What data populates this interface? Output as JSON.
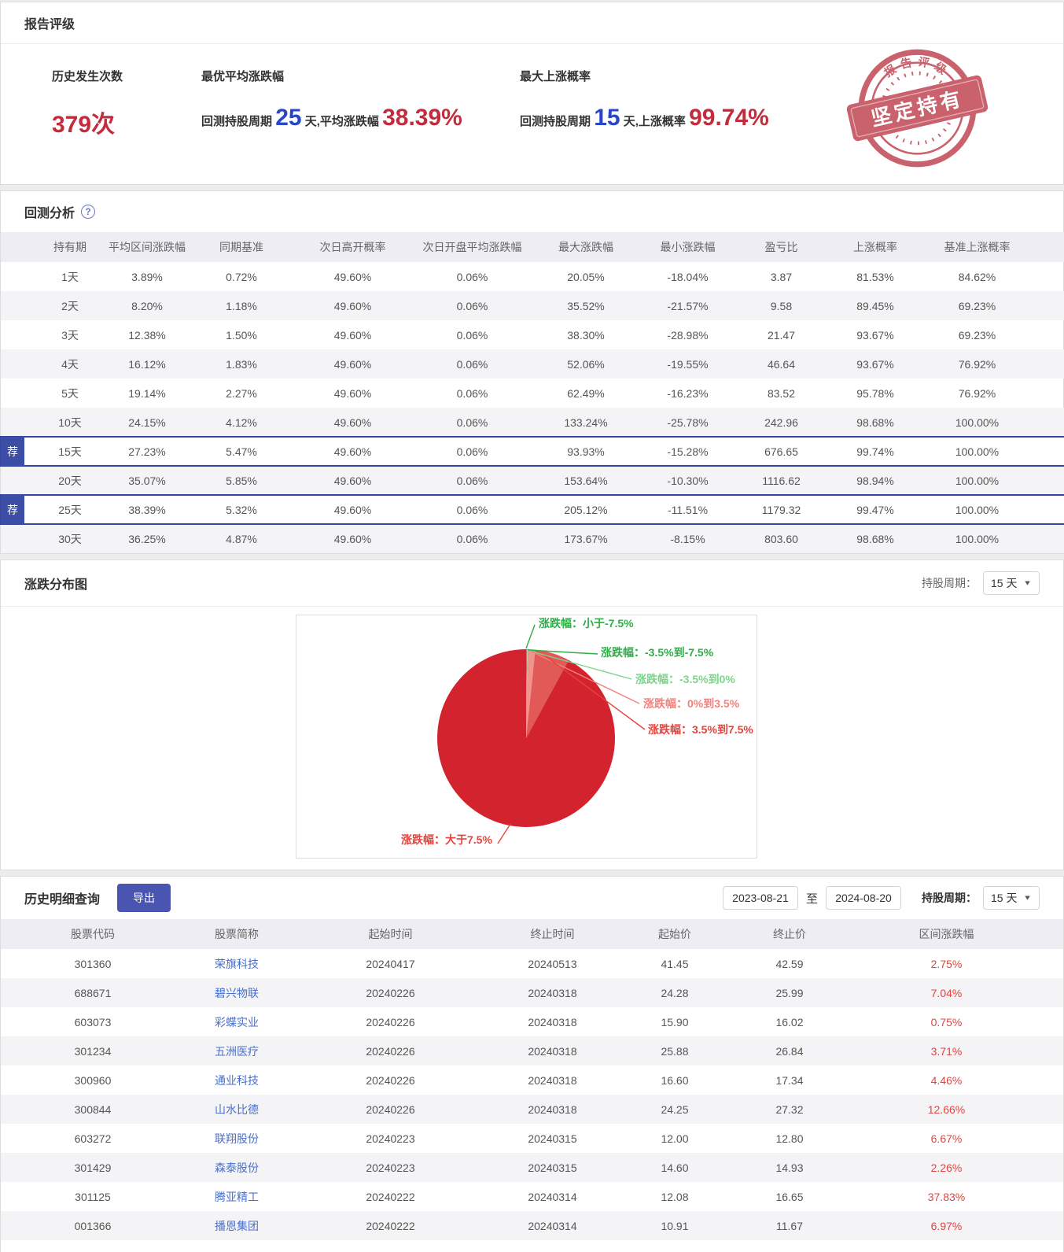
{
  "report_rating": {
    "title": "报告评级",
    "occurrences": {
      "label": "历史发生次数",
      "value": "379次"
    },
    "best_return": {
      "label": "最优平均涨跌幅",
      "prefix": "回测持股周期",
      "days": "25",
      "mid": "天,平均涨跌幅",
      "value": "38.39%"
    },
    "max_prob": {
      "label": "最大上涨概率",
      "prefix": "回测持股周期",
      "days": "15",
      "mid": "天,上涨概率",
      "value": "99.74%"
    },
    "stamp": {
      "ring_text": "报告评级",
      "banner_text": "坚定持有",
      "color": "#c24b57"
    }
  },
  "backtest": {
    "title": "回测分析",
    "help_icon": "?",
    "recommend_badge": "荐",
    "columns": [
      "持有期",
      "平均区间涨跌幅",
      "同期基准",
      "次日高开概率",
      "次日开盘平均涨跌幅",
      "最大涨跌幅",
      "最小涨跌幅",
      "盈亏比",
      "上涨概率",
      "基准上涨概率"
    ],
    "rows": [
      {
        "recommended": false,
        "cells": [
          "1天",
          "3.89%",
          "0.72%",
          "49.60%",
          "0.06%",
          "20.05%",
          "-18.04%",
          "3.87",
          "81.53%",
          "84.62%"
        ]
      },
      {
        "recommended": false,
        "cells": [
          "2天",
          "8.20%",
          "1.18%",
          "49.60%",
          "0.06%",
          "35.52%",
          "-21.57%",
          "9.58",
          "89.45%",
          "69.23%"
        ]
      },
      {
        "recommended": false,
        "cells": [
          "3天",
          "12.38%",
          "1.50%",
          "49.60%",
          "0.06%",
          "38.30%",
          "-28.98%",
          "21.47",
          "93.67%",
          "69.23%"
        ]
      },
      {
        "recommended": false,
        "cells": [
          "4天",
          "16.12%",
          "1.83%",
          "49.60%",
          "0.06%",
          "52.06%",
          "-19.55%",
          "46.64",
          "93.67%",
          "76.92%"
        ]
      },
      {
        "recommended": false,
        "cells": [
          "5天",
          "19.14%",
          "2.27%",
          "49.60%",
          "0.06%",
          "62.49%",
          "-16.23%",
          "83.52",
          "95.78%",
          "76.92%"
        ]
      },
      {
        "recommended": false,
        "cells": [
          "10天",
          "24.15%",
          "4.12%",
          "49.60%",
          "0.06%",
          "133.24%",
          "-25.78%",
          "242.96",
          "98.68%",
          "100.00%"
        ]
      },
      {
        "recommended": true,
        "cells": [
          "15天",
          "27.23%",
          "5.47%",
          "49.60%",
          "0.06%",
          "93.93%",
          "-15.28%",
          "676.65",
          "99.74%",
          "100.00%"
        ]
      },
      {
        "recommended": false,
        "cells": [
          "20天",
          "35.07%",
          "5.85%",
          "49.60%",
          "0.06%",
          "153.64%",
          "-10.30%",
          "1116.62",
          "98.94%",
          "100.00%"
        ]
      },
      {
        "recommended": true,
        "cells": [
          "25天",
          "38.39%",
          "5.32%",
          "49.60%",
          "0.06%",
          "205.12%",
          "-11.51%",
          "1179.32",
          "99.47%",
          "100.00%"
        ]
      },
      {
        "recommended": false,
        "cells": [
          "30天",
          "36.25%",
          "4.87%",
          "49.60%",
          "0.06%",
          "173.67%",
          "-8.15%",
          "803.60",
          "98.68%",
          "100.00%"
        ]
      }
    ]
  },
  "distribution": {
    "title": "涨跌分布图",
    "period_label": "持股周期：",
    "period_value": "15 天"
  },
  "chart_data": {
    "type": "pie",
    "title": "涨跌分布图",
    "period": "15 天",
    "legend_position": "callout-labels",
    "slices": [
      {
        "label": "涨跌幅：小于-7.5%",
        "value": 0.09,
        "color": "#3db24f",
        "label_color": "#2fae46"
      },
      {
        "label": "涨跌幅：-3.5%到-7.5%",
        "value": 0.09,
        "color": "#3db24f",
        "label_color": "#2fae46"
      },
      {
        "label": "涨跌幅：-3.5%到0%",
        "value": 0.08,
        "color": "#80d98f",
        "label_color": "#7cd48a"
      },
      {
        "label": "涨跌幅：0%到3.5%",
        "value": 1.4,
        "color": "#f0938d",
        "label_color": "#f1837c"
      },
      {
        "label": "涨跌幅：3.5%到7.5%",
        "value": 6.3,
        "color": "#e25a57",
        "label_color": "#e8423c"
      },
      {
        "label": "涨跌幅：大于7.5%",
        "value": 92.04,
        "color": "#d2232e",
        "label_color": "#e8423c"
      }
    ]
  },
  "history": {
    "title": "历史明细查询",
    "export_label": "导出",
    "date_from": "2023-08-21",
    "to_label": "至",
    "date_to": "2024-08-20",
    "period_label": "持股周期：",
    "period_value": "15 天",
    "columns": [
      "股票代码",
      "股票简称",
      "起始时间",
      "终止时间",
      "起始价",
      "终止价",
      "区间涨跌幅"
    ],
    "rows": [
      [
        "301360",
        "荣旗科技",
        "20240417",
        "20240513",
        "41.45",
        "42.59",
        "2.75%"
      ],
      [
        "688671",
        "碧兴物联",
        "20240226",
        "20240318",
        "24.28",
        "25.99",
        "7.04%"
      ],
      [
        "603073",
        "彩蝶实业",
        "20240226",
        "20240318",
        "15.90",
        "16.02",
        "0.75%"
      ],
      [
        "301234",
        "五洲医疗",
        "20240226",
        "20240318",
        "25.88",
        "26.84",
        "3.71%"
      ],
      [
        "300960",
        "通业科技",
        "20240226",
        "20240318",
        "16.60",
        "17.34",
        "4.46%"
      ],
      [
        "300844",
        "山水比德",
        "20240226",
        "20240318",
        "24.25",
        "27.32",
        "12.66%"
      ],
      [
        "603272",
        "联翔股份",
        "20240223",
        "20240315",
        "12.00",
        "12.80",
        "6.67%"
      ],
      [
        "301429",
        "森泰股份",
        "20240223",
        "20240315",
        "14.60",
        "14.93",
        "2.26%"
      ],
      [
        "301125",
        "腾亚精工",
        "20240222",
        "20240314",
        "12.08",
        "16.65",
        "37.83%"
      ],
      [
        "001366",
        "播恩集团",
        "20240222",
        "20240314",
        "10.91",
        "11.67",
        "6.97%"
      ]
    ]
  }
}
